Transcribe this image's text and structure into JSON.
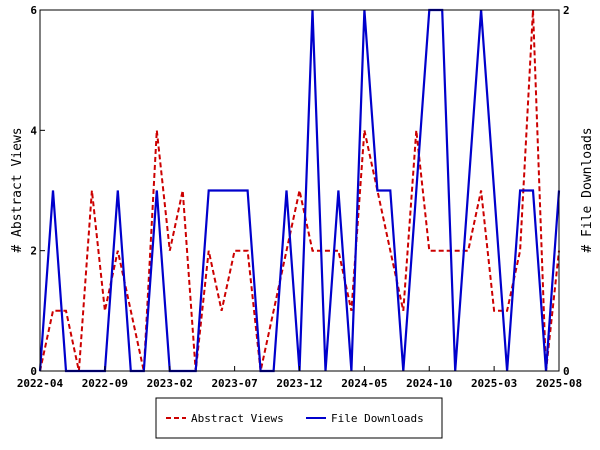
{
  "chart_data": {
    "type": "line",
    "title": "",
    "xlabel": "",
    "ylabel": "# Abstract Views",
    "y2label": "# File Downloads",
    "x_ticks": [
      "2022-04",
      "2022-09",
      "2023-02",
      "2023-07",
      "2023-12",
      "2024-05",
      "2024-10",
      "2025-03",
      "2025-08"
    ],
    "y_ticks": [
      "0",
      "2",
      "4",
      "6"
    ],
    "y2_ticks": [
      "0",
      "2"
    ],
    "ylim": [
      0,
      6
    ],
    "y2lim": [
      0,
      2
    ],
    "grid": false,
    "legend_position": "bottom",
    "x": [
      "2022-04",
      "2022-05",
      "2022-06",
      "2022-07",
      "2022-08",
      "2022-09",
      "2022-10",
      "2022-11",
      "2022-12",
      "2023-01",
      "2023-02",
      "2023-03",
      "2023-04",
      "2023-05",
      "2023-06",
      "2023-07",
      "2023-08",
      "2023-09",
      "2023-10",
      "2023-11",
      "2023-12",
      "2024-01",
      "2024-02",
      "2024-03",
      "2024-04",
      "2024-05",
      "2024-06",
      "2024-07",
      "2024-08",
      "2024-09",
      "2024-10",
      "2024-11",
      "2024-12",
      "2025-01",
      "2025-02",
      "2025-03",
      "2025-04",
      "2025-05",
      "2025-06",
      "2025-07",
      "2025-08"
    ],
    "series": [
      {
        "name": "Abstract Views",
        "axis": "left",
        "color": "#cc0000",
        "style": "dashed",
        "values": [
          0,
          1,
          1,
          0,
          3,
          1,
          2,
          1,
          0,
          4,
          2,
          3,
          0,
          2,
          1,
          2,
          2,
          0,
          1,
          2,
          3,
          2,
          2,
          2,
          1,
          4,
          3,
          2,
          1,
          4,
          2,
          2,
          2,
          2,
          3,
          1,
          1,
          2,
          6,
          0,
          2
        ]
      },
      {
        "name": "File Downloads",
        "axis": "right",
        "color": "#0000cc",
        "style": "solid",
        "values": [
          0,
          1,
          0,
          0,
          0,
          0,
          1,
          0,
          0,
          1,
          0,
          0,
          0,
          1,
          1,
          1,
          1,
          0,
          0,
          1,
          0,
          2,
          0,
          1,
          0,
          2,
          1,
          1,
          0,
          1,
          2,
          2,
          0,
          1,
          2,
          1,
          0,
          1,
          1,
          0,
          1
        ]
      }
    ]
  },
  "colors": {
    "frame": "#000000",
    "abstract_views": "#cc0000",
    "file_downloads": "#0000cc"
  }
}
